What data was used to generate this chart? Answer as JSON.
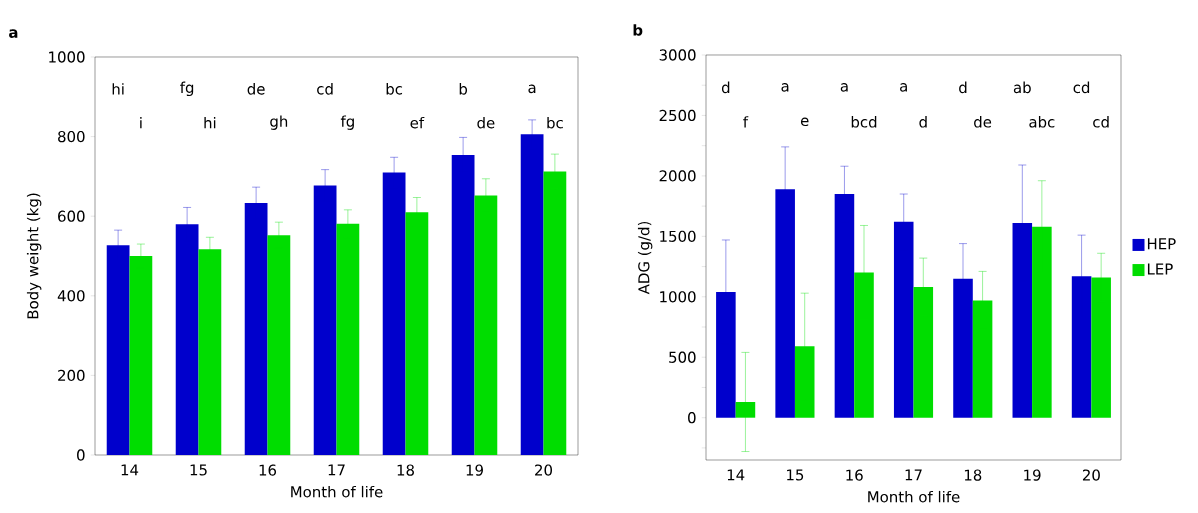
{
  "chart_data": [
    {
      "type": "bar",
      "title": "a",
      "xlabel": "Month of life",
      "ylabel": "Body weight (kg)",
      "categories": [
        "14",
        "15",
        "16",
        "17",
        "18",
        "19",
        "20"
      ],
      "series": [
        {
          "color": "#0000cc",
          "values": [
            527,
            580,
            633,
            677,
            710,
            754,
            806
          ],
          "errors": [
            38,
            42,
            40,
            40,
            38,
            44,
            36
          ]
        },
        {
          "color": "#00dd00",
          "values": [
            500,
            517,
            552,
            581,
            610,
            652,
            712
          ],
          "errors": [
            30,
            30,
            33,
            35,
            37,
            42,
            44
          ]
        }
      ],
      "ylim": [
        0,
        1000
      ],
      "yticks": [
        0,
        200,
        400,
        600,
        800,
        1000
      ],
      "annotations": [
        "hi",
        "i",
        "fg",
        "hi",
        "de",
        "gh",
        "cd",
        "fg",
        "bc",
        "ef",
        "b",
        "de",
        "a",
        "bc"
      ]
    },
    {
      "type": "bar",
      "title": "b",
      "xlabel": "Month of life",
      "ylabel": "ADG (g/d)",
      "categories": [
        "14",
        "15",
        "16",
        "17",
        "18",
        "19",
        "20"
      ],
      "series": [
        {
          "name": "HEP",
          "color": "#0000cc",
          "values": [
            1040,
            1890,
            1850,
            1620,
            1150,
            1610,
            1170
          ],
          "errors": [
            430,
            350,
            230,
            230,
            290,
            480,
            340
          ]
        },
        {
          "name": "LEP",
          "color": "#00dd00",
          "values": [
            130,
            590,
            1200,
            1080,
            970,
            1580,
            1160
          ],
          "errors": [
            410,
            440,
            390,
            240,
            240,
            380,
            200
          ]
        }
      ],
      "ylim": [
        -350,
        3000
      ],
      "yticks": [
        {
          "value": -250,
          "label": null
        },
        0,
        {
          "value": 250,
          "label": null
        },
        500,
        {
          "value": 750,
          "label": null
        },
        1000,
        {
          "value": 1250,
          "label": null
        },
        1500,
        {
          "value": 1750,
          "label": null
        },
        2000,
        {
          "value": 2250,
          "label": null
        },
        2500,
        {
          "value": 2750,
          "label": null
        },
        3000
      ],
      "legend": "right",
      "annotations": [
        "d",
        "f",
        "a",
        "e",
        "a",
        "bcd",
        "a",
        "d",
        "d",
        "de",
        "ab",
        "abc",
        "cd",
        "cd"
      ]
    }
  ]
}
